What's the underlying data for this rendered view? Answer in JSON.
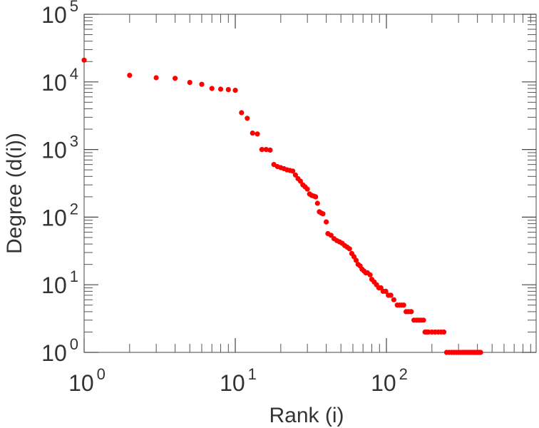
{
  "chart_data": {
    "type": "scatter",
    "xlabel": "Rank (i)",
    "ylabel": "Degree (d(i))",
    "x_scale": "log",
    "y_scale": "log",
    "xlim": [
      1,
      900
    ],
    "ylim": [
      1,
      100000
    ],
    "x_ticks": [
      {
        "base": "10",
        "exp": "0",
        "value": 1
      },
      {
        "base": "10",
        "exp": "1",
        "value": 10
      },
      {
        "base": "10",
        "exp": "2",
        "value": 100
      }
    ],
    "y_ticks": [
      {
        "base": "10",
        "exp": "0",
        "value": 1
      },
      {
        "base": "10",
        "exp": "1",
        "value": 10
      },
      {
        "base": "10",
        "exp": "2",
        "value": 100
      },
      {
        "base": "10",
        "exp": "3",
        "value": 1000
      },
      {
        "base": "10",
        "exp": "4",
        "value": 10000
      },
      {
        "base": "10",
        "exp": "5",
        "value": 100000
      }
    ],
    "grid": false,
    "marker_color": "#ff0000",
    "series": [
      {
        "points": [
          [
            1,
            21000
          ],
          [
            2,
            12500
          ],
          [
            3,
            11500
          ],
          [
            4,
            11300
          ],
          [
            5,
            9800
          ],
          [
            6,
            9200
          ],
          [
            7,
            8000
          ],
          [
            8,
            7800
          ],
          [
            9,
            7700
          ],
          [
            10,
            7500
          ],
          [
            11,
            3500
          ],
          [
            12,
            2900
          ],
          [
            13,
            1750
          ],
          [
            14,
            1700
          ],
          [
            15,
            1000
          ],
          [
            16,
            1000
          ],
          [
            17,
            980
          ],
          [
            18,
            600
          ],
          [
            19,
            560
          ],
          [
            20,
            540
          ],
          [
            21,
            520
          ],
          [
            22,
            500
          ],
          [
            23,
            490
          ],
          [
            24,
            480
          ],
          [
            25,
            420
          ],
          [
            26,
            370
          ],
          [
            27,
            340
          ],
          [
            28,
            300
          ],
          [
            29,
            280
          ],
          [
            30,
            260
          ],
          [
            31,
            220
          ],
          [
            32,
            210
          ],
          [
            33,
            205
          ],
          [
            34,
            200
          ],
          [
            35,
            160
          ],
          [
            36,
            120
          ],
          [
            37,
            115
          ],
          [
            38,
            112
          ],
          [
            40,
            85
          ],
          [
            41,
            57
          ],
          [
            43,
            54
          ],
          [
            45,
            48
          ],
          [
            47,
            45
          ],
          [
            49,
            43
          ],
          [
            51,
            41
          ],
          [
            53,
            38
          ],
          [
            55,
            36
          ],
          [
            57,
            34
          ],
          [
            59,
            29
          ],
          [
            61,
            26
          ],
          [
            63,
            23
          ],
          [
            65,
            20
          ],
          [
            67,
            19
          ],
          [
            69,
            17
          ],
          [
            71,
            16
          ],
          [
            73,
            15
          ],
          [
            75,
            15
          ],
          [
            78,
            14
          ],
          [
            80,
            12
          ],
          [
            83,
            11
          ],
          [
            86,
            10
          ],
          [
            89,
            9
          ],
          [
            92,
            9
          ],
          [
            95,
            8
          ],
          [
            99,
            8
          ],
          [
            103,
            7
          ],
          [
            107,
            7
          ],
          [
            112,
            6
          ],
          [
            118,
            5
          ],
          [
            122,
            5
          ],
          [
            126,
            5
          ],
          [
            130,
            5
          ],
          [
            135,
            4
          ],
          [
            140,
            4
          ],
          [
            146,
            4
          ],
          [
            152,
            3
          ],
          [
            158,
            3
          ],
          [
            164,
            3
          ],
          [
            170,
            3
          ],
          [
            176,
            3
          ],
          [
            180,
            2
          ],
          [
            185,
            2
          ],
          [
            190,
            2
          ],
          [
            200,
            2
          ],
          [
            210,
            2
          ],
          [
            220,
            2
          ],
          [
            230,
            2
          ],
          [
            240,
            2
          ],
          [
            250,
            1
          ],
          [
            260,
            1
          ],
          [
            270,
            1
          ],
          [
            280,
            1
          ],
          [
            290,
            1
          ],
          [
            300,
            1
          ],
          [
            310,
            1
          ],
          [
            320,
            1
          ],
          [
            330,
            1
          ],
          [
            340,
            1
          ],
          [
            350,
            1
          ],
          [
            360,
            1
          ],
          [
            370,
            1
          ],
          [
            380,
            1
          ],
          [
            390,
            1
          ],
          [
            400,
            1
          ],
          [
            410,
            1
          ],
          [
            420,
            1
          ]
        ]
      }
    ]
  }
}
